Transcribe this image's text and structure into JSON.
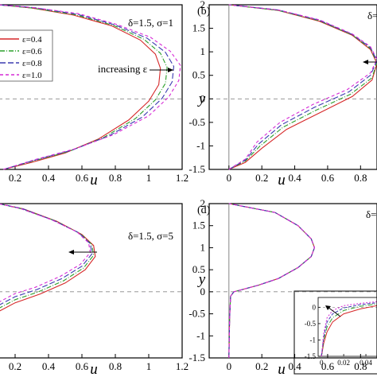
{
  "chart_data": [
    {
      "type": "line",
      "panel_label": "",
      "params": "δ=1.5, σ=1",
      "xlabel": "u",
      "ylabel": "",
      "xticks": [
        "0.2",
        "0.4",
        "0.6",
        "0.8",
        "1",
        "1.2"
      ],
      "yticks": [],
      "annotation": "increasing ε",
      "legend": {
        "position": "left",
        "entries": [
          "ε=0.4",
          "ε=0.6",
          "ε=0.8",
          "ε=1.0"
        ]
      },
      "xlim": [
        0.1,
        1.2
      ],
      "ylim": [
        -1.5,
        2
      ],
      "series": [
        {
          "name": "ε=0.4",
          "color": "#d62728",
          "dash": "",
          "x": [
            0.13,
            0.3,
            0.5,
            0.7,
            0.88,
            1.0,
            1.06,
            1.07,
            1.04,
            0.95,
            0.78,
            0.55,
            0.3,
            0.1
          ],
          "y": [
            -1.5,
            -1.35,
            -1.15,
            -0.85,
            -0.45,
            -0.05,
            0.3,
            0.65,
            0.95,
            1.25,
            1.55,
            1.78,
            1.93,
            2.0
          ]
        },
        {
          "name": "ε=0.6",
          "color": "#2ca02c",
          "dash": "6,2,1,2",
          "x": [
            0.13,
            0.3,
            0.52,
            0.73,
            0.92,
            1.04,
            1.1,
            1.11,
            1.07,
            0.97,
            0.79,
            0.56,
            0.3,
            0.1
          ],
          "y": [
            -1.5,
            -1.33,
            -1.12,
            -0.82,
            -0.42,
            -0.02,
            0.33,
            0.67,
            0.97,
            1.27,
            1.56,
            1.79,
            1.93,
            2.0
          ]
        },
        {
          "name": "ε=0.8",
          "color": "#3b3bb0",
          "dash": "7,3",
          "x": [
            0.13,
            0.31,
            0.54,
            0.76,
            0.96,
            1.08,
            1.14,
            1.15,
            1.1,
            0.99,
            0.8,
            0.57,
            0.31,
            0.1
          ],
          "y": [
            -1.5,
            -1.31,
            -1.09,
            -0.79,
            -0.39,
            0.01,
            0.36,
            0.69,
            0.99,
            1.29,
            1.57,
            1.8,
            1.94,
            2.0
          ]
        },
        {
          "name": "ε=1.0",
          "color": "#d62ad6",
          "dash": "4,3",
          "x": [
            0.13,
            0.32,
            0.56,
            0.79,
            1.0,
            1.12,
            1.18,
            1.19,
            1.13,
            1.01,
            0.81,
            0.58,
            0.31,
            0.1
          ],
          "y": [
            -1.5,
            -1.29,
            -1.06,
            -0.76,
            -0.36,
            0.04,
            0.39,
            0.71,
            1.01,
            1.31,
            1.58,
            1.81,
            1.94,
            2.0
          ]
        }
      ]
    },
    {
      "type": "line",
      "panel_label": "(b)",
      "params": "δ=",
      "xlabel": "u",
      "ylabel": "y",
      "xticks": [
        "0",
        "0.2",
        "0.4",
        "0.6",
        "0.8"
      ],
      "yticks": [
        "-1.5",
        "-1",
        "-0.5",
        "0",
        "0.5",
        "1",
        "1.5",
        "2"
      ],
      "annotation": "",
      "xlim": [
        -0.12,
        0.9
      ],
      "ylim": [
        -1.5,
        2
      ],
      "series": [
        {
          "name": "ε=0.4",
          "color": "#d62728",
          "dash": "",
          "x": [
            0.0,
            0.1,
            0.2,
            0.35,
            0.55,
            0.75,
            0.87,
            0.9,
            0.86,
            0.75,
            0.55,
            0.3,
            0.0
          ],
          "y": [
            -1.5,
            -1.35,
            -1.05,
            -0.65,
            -0.3,
            0.05,
            0.4,
            0.75,
            1.05,
            1.35,
            1.65,
            1.88,
            2.0
          ]
        },
        {
          "name": "ε=0.6",
          "color": "#2ca02c",
          "dash": "6,2,1,2",
          "x": [
            0.0,
            0.1,
            0.19,
            0.33,
            0.53,
            0.74,
            0.87,
            0.9,
            0.86,
            0.75,
            0.55,
            0.3,
            0.0
          ],
          "y": [
            -1.5,
            -1.32,
            -1.0,
            -0.6,
            -0.24,
            0.1,
            0.45,
            0.78,
            1.07,
            1.36,
            1.66,
            1.88,
            2.0
          ]
        },
        {
          "name": "ε=0.8",
          "color": "#3b3bb0",
          "dash": "7,3",
          "x": [
            0.0,
            0.1,
            0.18,
            0.32,
            0.52,
            0.73,
            0.86,
            0.9,
            0.86,
            0.75,
            0.55,
            0.3,
            0.0
          ],
          "y": [
            -1.5,
            -1.3,
            -0.96,
            -0.55,
            -0.18,
            0.15,
            0.5,
            0.81,
            1.09,
            1.37,
            1.67,
            1.89,
            2.0
          ]
        },
        {
          "name": "ε=1.0",
          "color": "#d62ad6",
          "dash": "4,3",
          "x": [
            0.0,
            0.1,
            0.17,
            0.31,
            0.51,
            0.72,
            0.86,
            0.9,
            0.86,
            0.75,
            0.55,
            0.3,
            0.0
          ],
          "y": [
            -1.5,
            -1.28,
            -0.92,
            -0.5,
            -0.12,
            0.2,
            0.55,
            0.84,
            1.11,
            1.38,
            1.68,
            1.89,
            2.0
          ]
        }
      ]
    },
    {
      "type": "line",
      "panel_label": "",
      "params": "δ=1.5, σ=5",
      "xlabel": "u",
      "ylabel": "",
      "xticks": [
        "0.2",
        "0.4",
        "0.6",
        "0.8",
        "1",
        "1.2"
      ],
      "yticks": [],
      "annotation": "",
      "xlim": [
        0.1,
        1.2
      ],
      "ylim": [
        -1.5,
        2
      ],
      "series": [
        {
          "name": "ε=0.4",
          "color": "#d62728",
          "dash": "",
          "x": [
            0.1,
            0.2,
            0.35,
            0.5,
            0.62,
            0.68,
            0.67,
            0.6,
            0.45,
            0.25,
            0.1
          ],
          "y": [
            -0.45,
            -0.25,
            -0.05,
            0.2,
            0.5,
            0.8,
            1.05,
            1.3,
            1.6,
            1.88,
            2.0
          ]
        },
        {
          "name": "ε=0.6",
          "color": "#2ca02c",
          "dash": "6,2,1,2",
          "x": [
            0.1,
            0.2,
            0.34,
            0.49,
            0.61,
            0.67,
            0.66,
            0.59,
            0.44,
            0.24,
            0.1
          ],
          "y": [
            -0.38,
            -0.18,
            0.0,
            0.25,
            0.54,
            0.83,
            1.07,
            1.32,
            1.61,
            1.88,
            2.0
          ]
        },
        {
          "name": "ε=0.8",
          "color": "#3b3bb0",
          "dash": "7,3",
          "x": [
            0.1,
            0.2,
            0.33,
            0.48,
            0.6,
            0.66,
            0.65,
            0.58,
            0.43,
            0.24,
            0.1
          ],
          "y": [
            -0.31,
            -0.11,
            0.05,
            0.3,
            0.58,
            0.86,
            1.09,
            1.34,
            1.62,
            1.89,
            2.0
          ]
        },
        {
          "name": "ε=1.0",
          "color": "#d62ad6",
          "dash": "4,3",
          "x": [
            0.1,
            0.2,
            0.32,
            0.47,
            0.59,
            0.65,
            0.64,
            0.57,
            0.42,
            0.23,
            0.1
          ],
          "y": [
            -0.24,
            -0.04,
            0.1,
            0.35,
            0.62,
            0.89,
            1.11,
            1.36,
            1.63,
            1.89,
            2.0
          ]
        }
      ]
    },
    {
      "type": "line",
      "panel_label": "(d)",
      "params": "δ=",
      "xlabel": "u",
      "ylabel": "y",
      "xticks": [
        "0",
        "0.2",
        "0.4",
        "0.6",
        "0.8"
      ],
      "yticks": [
        "-1.5",
        "-1",
        "-0.5",
        "0",
        "0.5",
        "1",
        "1.5",
        "2"
      ],
      "annotation": "",
      "xlim": [
        -0.12,
        0.9
      ],
      "ylim": [
        -1.5,
        2
      ],
      "series": [
        {
          "name": "ε=0.4",
          "color": "#d62728",
          "dash": "",
          "x": [
            0.0,
            0.004,
            0.01,
            0.03,
            0.08,
            0.18,
            0.3,
            0.42,
            0.5,
            0.52,
            0.5,
            0.42,
            0.28,
            0.0
          ],
          "y": [
            -1.5,
            -0.6,
            -0.1,
            0.0,
            0.05,
            0.15,
            0.3,
            0.55,
            0.8,
            1.0,
            1.2,
            1.5,
            1.8,
            2.0
          ]
        },
        {
          "name": "ε=0.6",
          "color": "#2ca02c",
          "dash": "6,2,1,2",
          "x": [
            0.0,
            0.004,
            0.01,
            0.03,
            0.08,
            0.18,
            0.3,
            0.42,
            0.5,
            0.52,
            0.5,
            0.42,
            0.28,
            0.0
          ],
          "y": [
            -1.5,
            -0.6,
            -0.1,
            0.0,
            0.05,
            0.15,
            0.3,
            0.55,
            0.8,
            1.0,
            1.2,
            1.5,
            1.8,
            2.0
          ]
        },
        {
          "name": "ε=0.8",
          "color": "#3b3bb0",
          "dash": "7,3",
          "x": [
            0.0,
            0.004,
            0.01,
            0.03,
            0.08,
            0.18,
            0.3,
            0.42,
            0.5,
            0.52,
            0.5,
            0.42,
            0.28,
            0.0
          ],
          "y": [
            -1.5,
            -0.6,
            -0.1,
            0.0,
            0.05,
            0.15,
            0.3,
            0.55,
            0.8,
            1.0,
            1.2,
            1.5,
            1.8,
            2.0
          ]
        },
        {
          "name": "ε=1.0",
          "color": "#d62ad6",
          "dash": "4,3",
          "x": [
            0.0,
            0.004,
            0.01,
            0.03,
            0.08,
            0.18,
            0.3,
            0.42,
            0.5,
            0.52,
            0.5,
            0.42,
            0.28,
            0.0
          ],
          "y": [
            -1.5,
            -0.6,
            -0.1,
            0.0,
            0.05,
            0.15,
            0.3,
            0.55,
            0.8,
            1.0,
            1.2,
            1.5,
            1.8,
            2.0
          ]
        }
      ],
      "inset": {
        "xticks": [
          "0",
          "0.02",
          "0.04"
        ],
        "yticks": [
          "0",
          "-0.5",
          "-1",
          "-1.5"
        ],
        "xlim": [
          -0.003,
          0.05
        ],
        "ylim": [
          -1.5,
          0.3
        ],
        "series": [
          {
            "name": "ε=0.4",
            "color": "#d62728",
            "dash": "",
            "x": [
              0.0,
              0.002,
              0.005,
              0.01,
              0.02,
              0.035,
              0.05
            ],
            "y": [
              -1.5,
              -1.1,
              -0.75,
              -0.45,
              -0.2,
              -0.05,
              0.05
            ]
          },
          {
            "name": "ε=0.6",
            "color": "#2ca02c",
            "dash": "6,2,1,2",
            "x": [
              0.0,
              0.002,
              0.005,
              0.01,
              0.02,
              0.035,
              0.05
            ],
            "y": [
              -1.5,
              -1.0,
              -0.6,
              -0.32,
              -0.1,
              0.03,
              0.1
            ]
          },
          {
            "name": "ε=0.8",
            "color": "#3b3bb0",
            "dash": "4,2",
            "x": [
              0.0,
              0.002,
              0.005,
              0.01,
              0.02,
              0.035,
              0.05
            ],
            "y": [
              -1.5,
              -0.9,
              -0.45,
              -0.2,
              -0.02,
              0.08,
              0.14
            ]
          },
          {
            "name": "ε=1.0",
            "color": "#d62ad6",
            "dash": "2,2",
            "x": [
              0.0,
              0.002,
              0.005,
              0.01,
              0.02,
              0.035,
              0.05
            ],
            "y": [
              -1.5,
              -0.8,
              -0.32,
              -0.1,
              0.05,
              0.12,
              0.17
            ]
          }
        ]
      }
    }
  ]
}
